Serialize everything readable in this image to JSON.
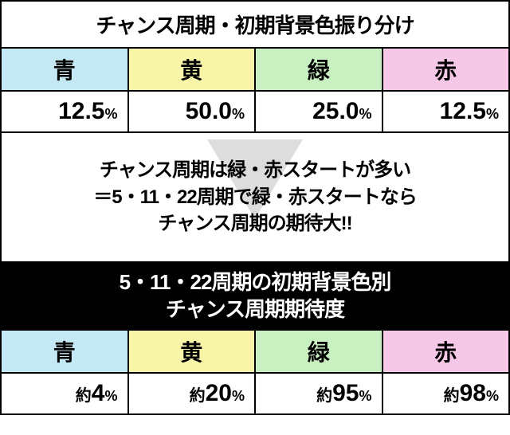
{
  "title1": "チャンス周期・初期背景色振り分け",
  "colors": {
    "blue": {
      "label": "青",
      "bg": "#c5e8f5",
      "value1_num": "12.5",
      "value1_pct": "%",
      "value2_prefix": "約",
      "value2_num": "4",
      "value2_pct": "%"
    },
    "yellow": {
      "label": "黄",
      "bg": "#f8f5a8",
      "value1_num": "50.0",
      "value1_pct": "%",
      "value2_prefix": "約",
      "value2_num": "20",
      "value2_pct": "%"
    },
    "green": {
      "label": "緑",
      "bg": "#c8f0c0",
      "value1_num": "25.0",
      "value1_pct": "%",
      "value2_prefix": "約",
      "value2_num": "95",
      "value2_pct": "%"
    },
    "red": {
      "label": "赤",
      "bg": "#f5c8e8",
      "value1_num": "12.5",
      "value1_pct": "%",
      "value2_prefix": "約",
      "value2_num": "98",
      "value2_pct": "%"
    }
  },
  "middle": {
    "line1": "チャンス周期は緑・赤スタートが多い",
    "line2": "＝5・11・22周期で緑・赤スタートなら",
    "line3": "チャンス周期の期待大!!"
  },
  "title2_line1": "5・11・22周期の初期背景色別",
  "title2_line2": "チャンス周期期待度"
}
